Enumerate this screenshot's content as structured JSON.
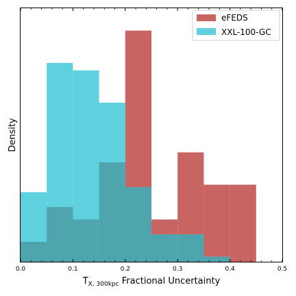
{
  "chart_data": {
    "type": "histogram",
    "title": "",
    "xlabel_main": "T",
    "xlabel_sub": "X, 300kpc",
    "xlabel_rest": " Fractional Uncertainty",
    "ylabel": "Density",
    "xlim": [
      0,
      0.5
    ],
    "ylim": [
      0,
      10.2
    ],
    "y_ticks_labeled": false,
    "x_ticks": [
      "0.0",
      "0.1",
      "0.2",
      "0.3",
      "0.4",
      "0.5"
    ],
    "x_tick_values": [
      0.0,
      0.1,
      0.2,
      0.3,
      0.4,
      0.5
    ],
    "bin_edges": [
      0.0,
      0.05,
      0.1,
      0.15,
      0.2,
      0.25,
      0.3,
      0.35,
      0.4,
      0.45,
      0.5
    ],
    "legend_location": "upper right",
    "series": [
      {
        "name": "eFEDS",
        "color": "#c86563",
        "bins": [
          [
            0.0,
            0.05,
            0.8
          ],
          [
            0.05,
            0.1,
            2.2
          ],
          [
            0.1,
            0.15,
            1.7
          ],
          [
            0.15,
            0.2,
            4.0
          ],
          [
            0.2,
            0.25,
            9.3
          ],
          [
            0.25,
            0.3,
            1.7
          ],
          [
            0.3,
            0.35,
            4.4
          ],
          [
            0.35,
            0.4,
            3.1
          ],
          [
            0.4,
            0.45,
            3.1
          ]
        ]
      },
      {
        "name": "XXL-100-GC",
        "color": "#5fd0dd",
        "bins": [
          [
            0.0,
            0.05,
            2.8
          ],
          [
            0.05,
            0.1,
            8.0
          ],
          [
            0.1,
            0.15,
            7.7
          ],
          [
            0.15,
            0.2,
            6.4
          ],
          [
            0.2,
            0.25,
            3.0
          ],
          [
            0.25,
            0.3,
            1.1
          ],
          [
            0.3,
            0.35,
            1.1
          ],
          [
            0.35,
            0.4,
            0.2
          ]
        ]
      }
    ],
    "overlap_color": "#4fa5ae"
  }
}
